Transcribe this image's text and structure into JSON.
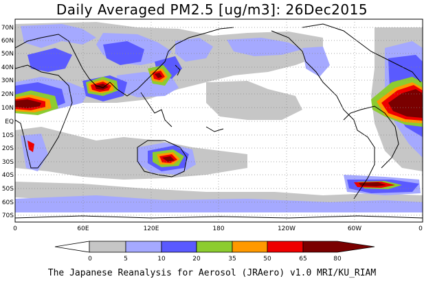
{
  "title": "Daily Averaged PM2.5 [ug/m3]: 26Dec2015",
  "footer": "The Japanese Reanalysis for Aerosol (JRAero) v1.0 MRI/KU_RIAM",
  "map": {
    "projection": "equirectangular, Pacific-centered (0 to 360 longitude)",
    "lat_labels": [
      "70N",
      "60N",
      "50N",
      "40N",
      "30N",
      "20N",
      "10N",
      "EQ",
      "10S",
      "20S",
      "30S",
      "40S",
      "50S",
      "60S",
      "70S"
    ],
    "lon_labels": [
      "0",
      "60E",
      "120E",
      "180",
      "120W",
      "60W",
      "0"
    ],
    "grid": "dotted graticule every 10 degrees"
  },
  "legend": {
    "tick_labels": [
      "0",
      "5",
      "10",
      "20",
      "35",
      "50",
      "65",
      "80"
    ],
    "colors": [
      "#ffffff",
      "#c6c6c6",
      "#a5a9ff",
      "#5a5aff",
      "#8ccc30",
      "#ff9900",
      "#ee0000",
      "#7a0000"
    ]
  }
}
